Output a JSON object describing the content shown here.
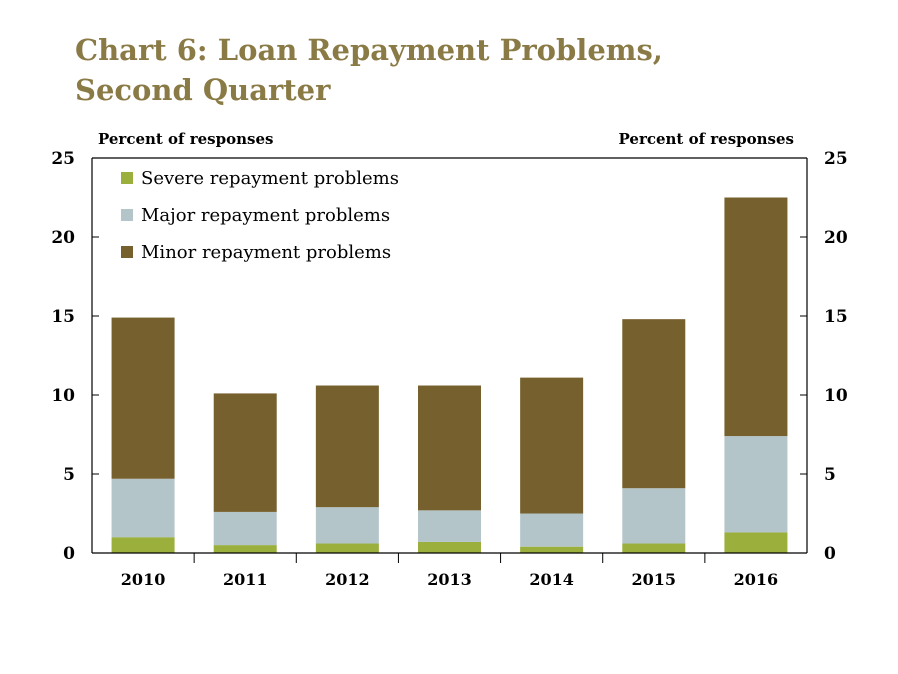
{
  "chart_data": {
    "type": "bar",
    "stacked": true,
    "title_line1": "Chart 6: Loan Repayment Problems,",
    "title_line2": "Second Quarter",
    "ylabel_left": "Percent of responses",
    "ylabel_right": "Percent of responses",
    "ylim": [
      0,
      25
    ],
    "yticks": [
      "0",
      "5",
      "10",
      "15",
      "20",
      "25"
    ],
    "grid": false,
    "legend_position": "top-left",
    "categories": [
      "2010",
      "2011",
      "2012",
      "2013",
      "2014",
      "2015",
      "2016"
    ],
    "series": [
      {
        "name": "Severe repayment problems",
        "color": "#9aaf3c",
        "values": [
          1.0,
          0.5,
          0.6,
          0.7,
          0.4,
          0.6,
          1.3
        ]
      },
      {
        "name": "Major repayment problems",
        "color": "#b4c5ca",
        "values": [
          3.7,
          2.1,
          2.3,
          2.0,
          2.1,
          3.5,
          6.1
        ]
      },
      {
        "name": "Minor repayment problems",
        "color": "#76602d",
        "values": [
          10.2,
          7.5,
          7.7,
          7.9,
          8.6,
          10.7,
          15.1
        ]
      }
    ]
  }
}
